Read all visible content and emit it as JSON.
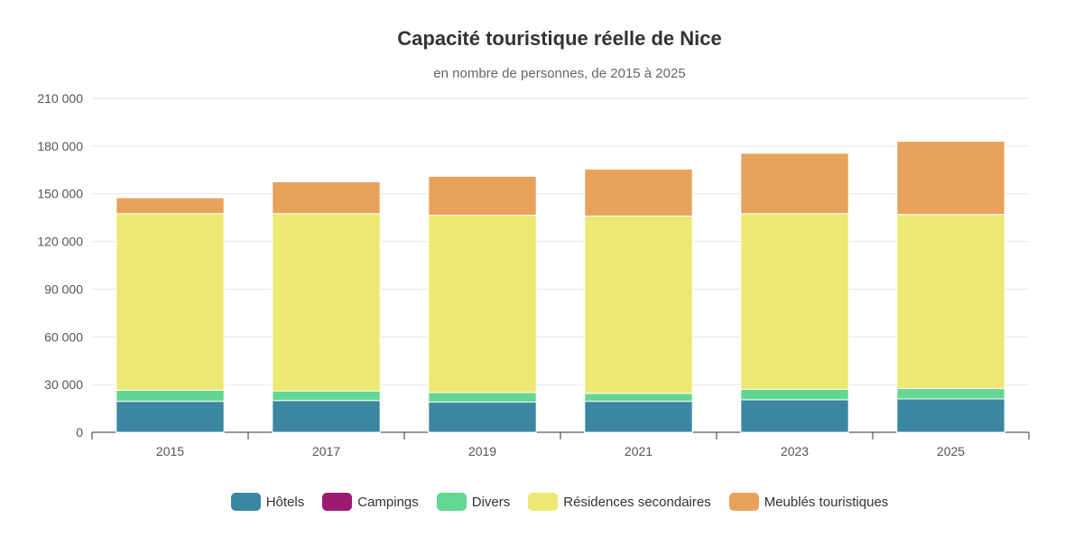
{
  "chart_data": {
    "type": "bar",
    "stacked": true,
    "title": "Capacité touristique réelle de Nice",
    "subtitle": "en nombre de personnes, de 2015 à 2025",
    "categories": [
      "2015",
      "2017",
      "2019",
      "2021",
      "2023",
      "2025"
    ],
    "y_ticks": [
      0,
      30000,
      60000,
      90000,
      120000,
      150000,
      180000,
      210000
    ],
    "y_tick_labels": [
      "0",
      "30 000",
      "60 000",
      "90 000",
      "120 000",
      "150 000",
      "180 000",
      "210 000"
    ],
    "ylim": [
      0,
      210000
    ],
    "grid": true,
    "legend_position": "bottom",
    "series": [
      {
        "name": "Hôtels",
        "color": "#3b87a2",
        "values": [
          19500,
          20000,
          19000,
          19500,
          20500,
          21000
        ]
      },
      {
        "name": "Campings",
        "color": "#9b1b72",
        "values": [
          0,
          0,
          0,
          0,
          0,
          0
        ]
      },
      {
        "name": "Divers",
        "color": "#63d691",
        "values": [
          7000,
          6000,
          6000,
          5000,
          6500,
          6500
        ]
      },
      {
        "name": "Résidences secondaires",
        "color": "#ede871",
        "values": [
          111000,
          111500,
          111500,
          111500,
          110500,
          109500
        ]
      },
      {
        "name": "Meublés touristiques",
        "color": "#e8a25c",
        "values": [
          10000,
          20000,
          24500,
          29500,
          38000,
          46000
        ]
      }
    ]
  }
}
